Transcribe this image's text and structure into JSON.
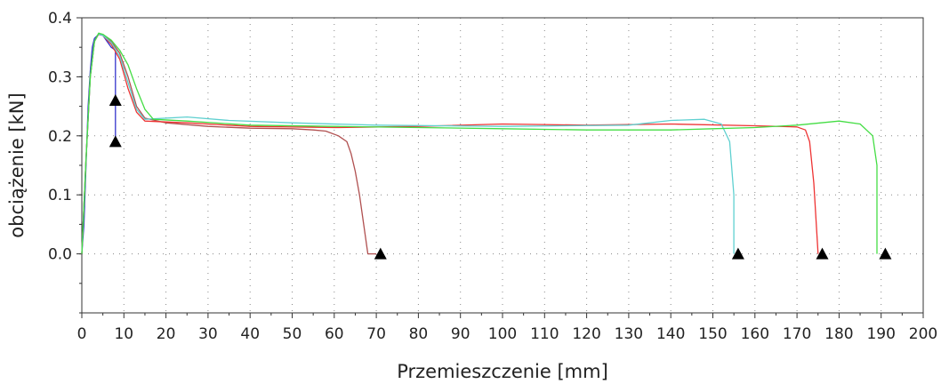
{
  "chart_data": {
    "type": "line",
    "title": "",
    "xlabel": "Przemieszczenie [mm]",
    "ylabel": "obciążenie [kN]",
    "xlim": [
      0,
      200
    ],
    "ylim": [
      -0.1,
      0.4
    ],
    "x_ticks": [
      "0",
      "10",
      "20",
      "30",
      "40",
      "50",
      "60",
      "70",
      "80",
      "90",
      "100",
      "110",
      "120",
      "130",
      "140",
      "150",
      "160",
      "170",
      "180",
      "190",
      "200"
    ],
    "y_ticks": [
      "0.0",
      "0.1",
      "0.2",
      "0.3",
      "0.4"
    ],
    "grid": "dotted",
    "series": [
      {
        "color": "#3333cc",
        "points": [
          [
            0,
            0
          ],
          [
            0.5,
            0.05
          ],
          [
            1,
            0.15
          ],
          [
            1.5,
            0.25
          ],
          [
            2,
            0.31
          ],
          [
            2.5,
            0.35
          ],
          [
            3,
            0.365
          ],
          [
            4,
            0.372
          ],
          [
            5,
            0.37
          ],
          [
            6,
            0.36
          ],
          [
            7,
            0.35
          ],
          [
            8,
            0.345
          ],
          [
            8,
            0.26
          ],
          [
            8,
            0.19
          ]
        ]
      },
      {
        "color": "#b05050",
        "points": [
          [
            0,
            0
          ],
          [
            1,
            0.16
          ],
          [
            2,
            0.3
          ],
          [
            3,
            0.36
          ],
          [
            4,
            0.372
          ],
          [
            5,
            0.372
          ],
          [
            7,
            0.36
          ],
          [
            9,
            0.34
          ],
          [
            11,
            0.3
          ],
          [
            13,
            0.25
          ],
          [
            15,
            0.23
          ],
          [
            20,
            0.222
          ],
          [
            30,
            0.216
          ],
          [
            40,
            0.213
          ],
          [
            50,
            0.212
          ],
          [
            55,
            0.21
          ],
          [
            58,
            0.208
          ],
          [
            61,
            0.2
          ],
          [
            63,
            0.19
          ],
          [
            64,
            0.17
          ],
          [
            65,
            0.14
          ],
          [
            66,
            0.1
          ],
          [
            67,
            0.05
          ],
          [
            68,
            0.0
          ],
          [
            70,
            0.0
          ]
        ]
      },
      {
        "color": "#ee3333",
        "points": [
          [
            0,
            0
          ],
          [
            1,
            0.16
          ],
          [
            2,
            0.3
          ],
          [
            3,
            0.36
          ],
          [
            4,
            0.373
          ],
          [
            5,
            0.37
          ],
          [
            7,
            0.355
          ],
          [
            9,
            0.33
          ],
          [
            11,
            0.28
          ],
          [
            13,
            0.24
          ],
          [
            15,
            0.225
          ],
          [
            25,
            0.222
          ],
          [
            40,
            0.216
          ],
          [
            60,
            0.214
          ],
          [
            80,
            0.216
          ],
          [
            100,
            0.22
          ],
          [
            120,
            0.218
          ],
          [
            140,
            0.22
          ],
          [
            160,
            0.217
          ],
          [
            170,
            0.215
          ],
          [
            172,
            0.21
          ],
          [
            173,
            0.19
          ],
          [
            174,
            0.12
          ],
          [
            175,
            0.0
          ]
        ]
      },
      {
        "color": "#5fd0d0",
        "points": [
          [
            0,
            0
          ],
          [
            1,
            0.16
          ],
          [
            2,
            0.3
          ],
          [
            3,
            0.36
          ],
          [
            4,
            0.373
          ],
          [
            5,
            0.37
          ],
          [
            7,
            0.358
          ],
          [
            9,
            0.335
          ],
          [
            11,
            0.29
          ],
          [
            13,
            0.245
          ],
          [
            15,
            0.228
          ],
          [
            25,
            0.232
          ],
          [
            35,
            0.226
          ],
          [
            50,
            0.222
          ],
          [
            70,
            0.218
          ],
          [
            100,
            0.216
          ],
          [
            130,
            0.218
          ],
          [
            140,
            0.226
          ],
          [
            148,
            0.228
          ],
          [
            152,
            0.22
          ],
          [
            154,
            0.19
          ],
          [
            155,
            0.1
          ],
          [
            155,
            0.0
          ]
        ]
      },
      {
        "color": "#44dd44",
        "points": [
          [
            0,
            0
          ],
          [
            1,
            0.16
          ],
          [
            2,
            0.3
          ],
          [
            3,
            0.36
          ],
          [
            4,
            0.374
          ],
          [
            5,
            0.372
          ],
          [
            7,
            0.362
          ],
          [
            9,
            0.345
          ],
          [
            11,
            0.32
          ],
          [
            13,
            0.28
          ],
          [
            15,
            0.245
          ],
          [
            17,
            0.228
          ],
          [
            25,
            0.225
          ],
          [
            40,
            0.218
          ],
          [
            60,
            0.216
          ],
          [
            80,
            0.214
          ],
          [
            100,
            0.212
          ],
          [
            120,
            0.21
          ],
          [
            140,
            0.21
          ],
          [
            150,
            0.212
          ],
          [
            160,
            0.214
          ],
          [
            170,
            0.218
          ],
          [
            180,
            0.225
          ],
          [
            185,
            0.22
          ],
          [
            188,
            0.2
          ],
          [
            189,
            0.15
          ],
          [
            189,
            0.0
          ]
        ]
      }
    ],
    "markers": [
      [
        8,
        0.26
      ],
      [
        8,
        0.19
      ],
      [
        71,
        0.0
      ],
      [
        156,
        0.0
      ],
      [
        176,
        0.0
      ],
      [
        191,
        0.0
      ]
    ]
  }
}
